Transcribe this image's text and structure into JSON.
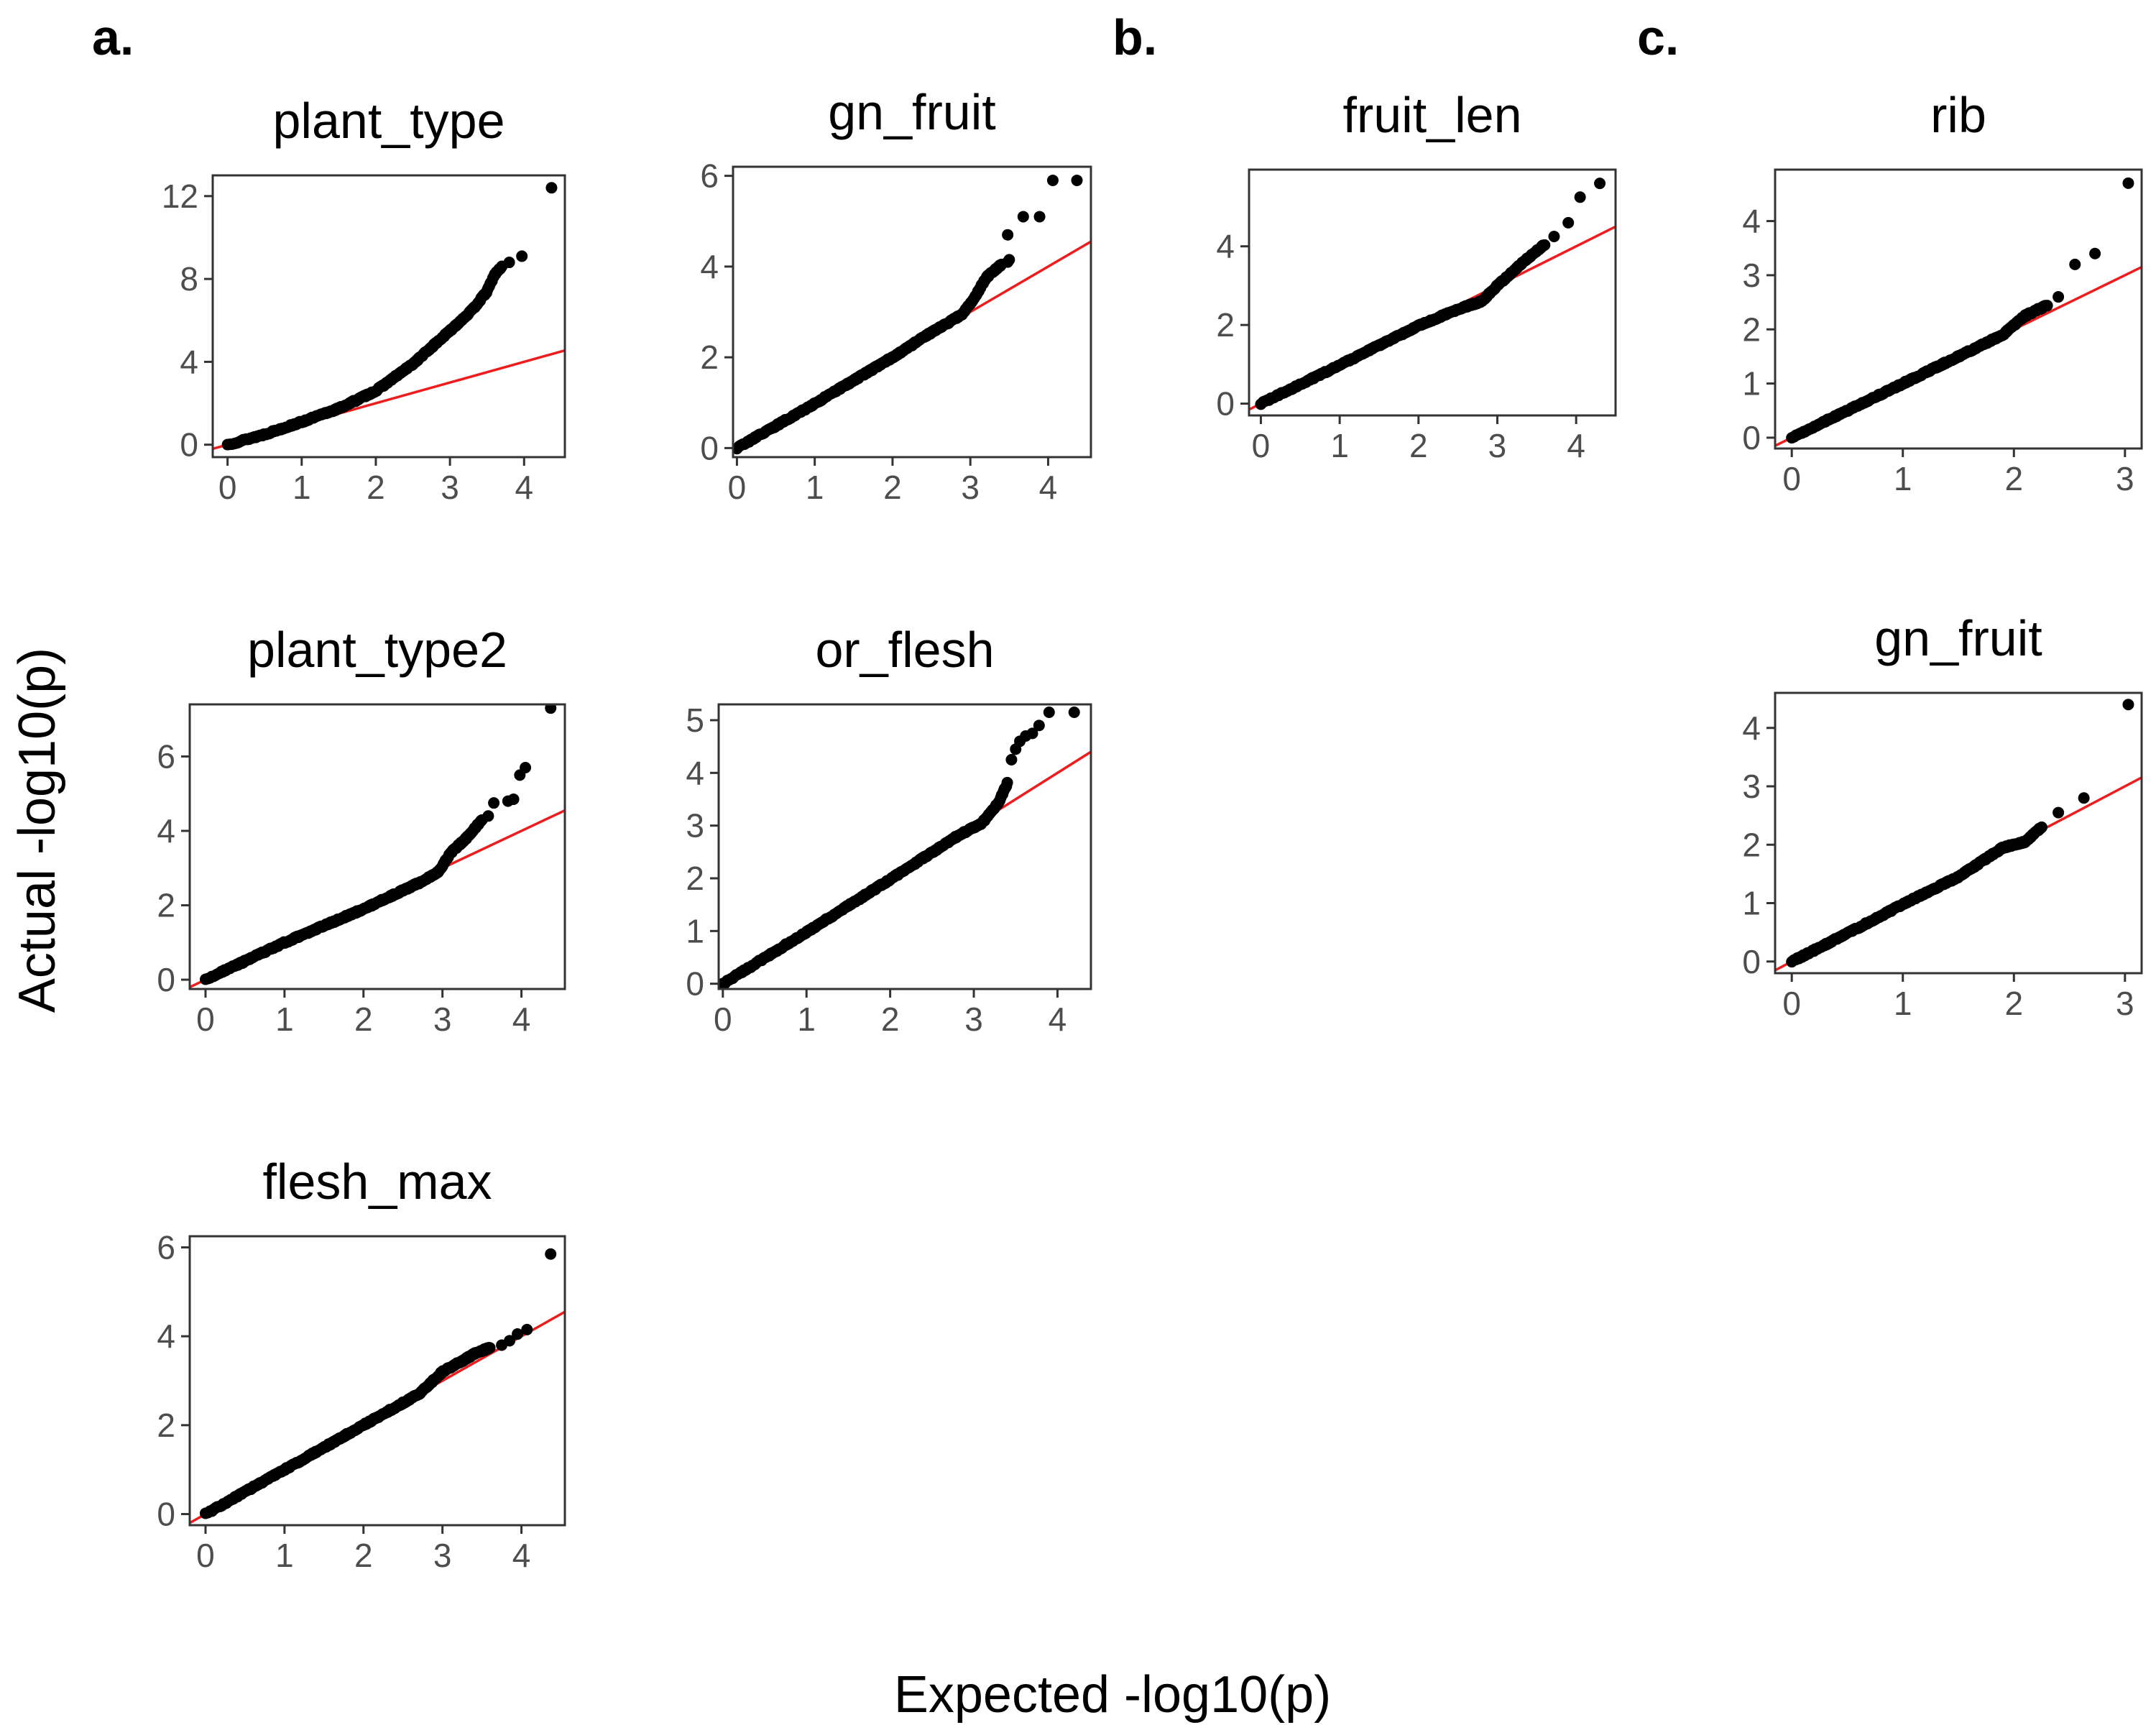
{
  "figure": {
    "ylabel": "Actual -log10(p)",
    "xlabel": "Expected -log10(p)",
    "colors": {
      "points": "#000000",
      "reference_line": "#ee1c1c",
      "frame": "#333333",
      "tick_labels": "#4d4d4d"
    }
  },
  "panel_letters": [
    "a.",
    "b.",
    "c."
  ],
  "chart_data": [
    {
      "type": "scatter",
      "panel": "a.",
      "title": "plant_type",
      "xlim": [
        -0.2,
        4.55
      ],
      "ylim": [
        -0.6,
        13.0
      ],
      "xticks": [
        0,
        1,
        2,
        3,
        4
      ],
      "yticks": [
        0,
        4,
        8,
        12
      ],
      "reference_line": {
        "slope": 1,
        "intercept": 0
      },
      "curve": [
        [
          0,
          0
        ],
        [
          0.5,
          0.5
        ],
        [
          1,
          1.1
        ],
        [
          1.5,
          1.75
        ],
        [
          2,
          2.6
        ],
        [
          2.5,
          3.9
        ],
        [
          3,
          5.5
        ],
        [
          3.3,
          6.5
        ],
        [
          3.5,
          7.4
        ],
        [
          3.6,
          8.2
        ],
        [
          3.7,
          8.6
        ]
      ],
      "outliers": [
        [
          3.8,
          8.8
        ],
        [
          3.97,
          9.1
        ],
        [
          4.37,
          12.4
        ]
      ]
    },
    {
      "type": "scatter",
      "panel": "a.",
      "title": "gn_fruit",
      "xlim": [
        -0.05,
        4.55
      ],
      "ylim": [
        -0.2,
        6.2
      ],
      "xticks": [
        0,
        1,
        2,
        3,
        4
      ],
      "yticks": [
        0,
        2,
        4,
        6
      ],
      "reference_line": {
        "slope": 1,
        "intercept": 0
      },
      "curve": [
        [
          0,
          0
        ],
        [
          1,
          0.98
        ],
        [
          2,
          2.0
        ],
        [
          2.5,
          2.55
        ],
        [
          2.9,
          2.95
        ],
        [
          3.05,
          3.3
        ],
        [
          3.2,
          3.75
        ],
        [
          3.4,
          4.05
        ]
      ],
      "outliers": [
        [
          3.48,
          4.1
        ],
        [
          3.5,
          4.15
        ],
        [
          3.48,
          4.7
        ],
        [
          3.68,
          5.1
        ],
        [
          3.89,
          5.1
        ],
        [
          4.06,
          5.9
        ],
        [
          4.37,
          5.9
        ]
      ]
    },
    {
      "type": "scatter",
      "panel": "b.",
      "title": "fruit_len",
      "xlim": [
        -0.15,
        4.5
      ],
      "ylim": [
        -0.3,
        5.95
      ],
      "xticks": [
        0,
        1,
        2,
        3,
        4
      ],
      "yticks": [
        0,
        2,
        4
      ],
      "reference_line": {
        "slope": 1,
        "intercept": 0
      },
      "curve": [
        [
          0,
          0
        ],
        [
          1,
          0.98
        ],
        [
          2,
          1.98
        ],
        [
          2.5,
          2.4
        ],
        [
          2.8,
          2.6
        ],
        [
          3,
          3.0
        ],
        [
          3.3,
          3.55
        ],
        [
          3.6,
          4.05
        ]
      ],
      "outliers": [
        [
          3.72,
          4.25
        ],
        [
          3.9,
          4.6
        ],
        [
          4.05,
          5.25
        ],
        [
          4.3,
          5.6
        ]
      ]
    },
    {
      "type": "scatter",
      "panel": "c.",
      "title": "rib",
      "xlim": [
        -0.15,
        3.15
      ],
      "ylim": [
        -0.2,
        4.95
      ],
      "xticks": [
        0,
        1,
        2,
        3
      ],
      "yticks": [
        0,
        1,
        2,
        3,
        4
      ],
      "reference_line": {
        "slope": 1,
        "intercept": 0
      },
      "curve": [
        [
          0,
          0
        ],
        [
          0.5,
          0.5
        ],
        [
          1,
          1.0
        ],
        [
          1.5,
          1.5
        ],
        [
          1.9,
          1.9
        ],
        [
          2.1,
          2.25
        ],
        [
          2.3,
          2.45
        ]
      ],
      "outliers": [
        [
          2.4,
          2.6
        ],
        [
          2.55,
          3.2
        ],
        [
          2.73,
          3.4
        ],
        [
          3.03,
          4.7
        ]
      ]
    },
    {
      "type": "scatter",
      "panel": "c.",
      "title": "gn_fruit",
      "xlim": [
        -0.15,
        3.15
      ],
      "ylim": [
        -0.2,
        4.6
      ],
      "xticks": [
        0,
        1,
        2,
        3
      ],
      "yticks": [
        0,
        1,
        2,
        3,
        4
      ],
      "reference_line": {
        "slope": 1,
        "intercept": 0
      },
      "curve": [
        [
          0,
          0
        ],
        [
          0.5,
          0.48
        ],
        [
          1,
          0.98
        ],
        [
          1.5,
          1.45
        ],
        [
          1.9,
          1.95
        ],
        [
          2.1,
          2.05
        ],
        [
          2.25,
          2.3
        ]
      ],
      "outliers": [
        [
          2.4,
          2.55
        ],
        [
          2.63,
          2.8
        ],
        [
          3.03,
          4.4
        ]
      ]
    },
    {
      "type": "scatter",
      "panel": "a.",
      "title": "plant_type2",
      "xlim": [
        -0.2,
        4.55
      ],
      "ylim": [
        -0.25,
        7.4
      ],
      "xticks": [
        0,
        1,
        2,
        3,
        4
      ],
      "yticks": [
        0,
        2,
        4,
        6
      ],
      "reference_line": {
        "slope": 1,
        "intercept": 0
      },
      "curve": [
        [
          0,
          0
        ],
        [
          1,
          1.0
        ],
        [
          2,
          1.9
        ],
        [
          2.7,
          2.6
        ],
        [
          2.95,
          2.9
        ],
        [
          3.1,
          3.4
        ],
        [
          3.3,
          3.8
        ],
        [
          3.5,
          4.3
        ]
      ],
      "outliers": [
        [
          3.58,
          4.4
        ],
        [
          3.65,
          4.75
        ],
        [
          3.83,
          4.8
        ],
        [
          3.9,
          4.85
        ],
        [
          3.98,
          5.5
        ],
        [
          4.05,
          5.7
        ],
        [
          4.37,
          7.3
        ]
      ]
    },
    {
      "type": "scatter",
      "panel": "a.",
      "title": "or_flesh",
      "xlim": [
        -0.05,
        4.4
      ],
      "ylim": [
        -0.1,
        5.3
      ],
      "xticks": [
        0,
        1,
        2,
        3,
        4
      ],
      "yticks": [
        0,
        1,
        2,
        3,
        4,
        5
      ],
      "reference_line": {
        "slope": 1,
        "intercept": 0
      },
      "curve": [
        [
          0,
          0
        ],
        [
          1,
          0.98
        ],
        [
          2,
          1.98
        ],
        [
          2.8,
          2.8
        ],
        [
          3.1,
          3.05
        ],
        [
          3.3,
          3.45
        ],
        [
          3.4,
          3.8
        ]
      ],
      "outliers": [
        [
          3.45,
          4.25
        ],
        [
          3.5,
          4.45
        ],
        [
          3.55,
          4.6
        ],
        [
          3.62,
          4.7
        ],
        [
          3.7,
          4.75
        ],
        [
          3.78,
          4.9
        ],
        [
          3.9,
          5.15
        ],
        [
          4.2,
          5.15
        ]
      ]
    },
    {
      "type": "scatter",
      "panel": "a.",
      "title": "flesh_max",
      "xlim": [
        -0.2,
        4.55
      ],
      "ylim": [
        -0.25,
        6.25
      ],
      "xticks": [
        0,
        1,
        2,
        3,
        4
      ],
      "yticks": [
        0,
        2,
        4,
        6
      ],
      "reference_line": {
        "slope": 1,
        "intercept": 0
      },
      "curve": [
        [
          0,
          0
        ],
        [
          1,
          1.0
        ],
        [
          2,
          2.0
        ],
        [
          2.7,
          2.7
        ],
        [
          3,
          3.2
        ],
        [
          3.4,
          3.6
        ],
        [
          3.6,
          3.75
        ]
      ],
      "outliers": [
        [
          3.75,
          3.8
        ],
        [
          3.85,
          3.9
        ],
        [
          3.95,
          4.05
        ],
        [
          4.07,
          4.15
        ],
        [
          4.37,
          5.85
        ]
      ]
    }
  ]
}
